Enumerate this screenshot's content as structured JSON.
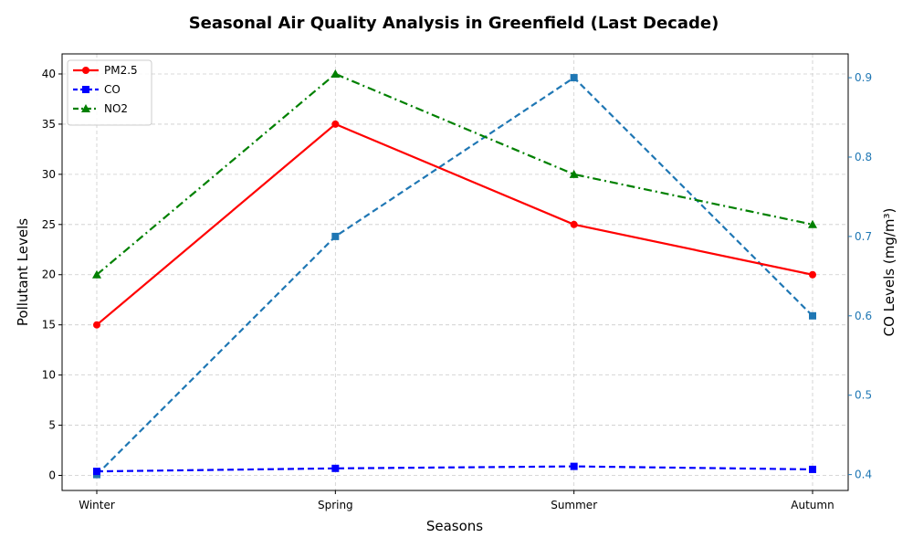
{
  "chart_data": {
    "type": "line",
    "title": "Seasonal Air Quality Analysis in Greenfield (Last Decade)",
    "xlabel": "Seasons",
    "ylabel": "Pollutant Levels",
    "ylabel_right": "CO Levels (mg/m³)",
    "categories": [
      "Winter",
      "Spring",
      "Summer",
      "Autumn"
    ],
    "ylim": [
      -1.5,
      42
    ],
    "yticks": [
      0,
      5,
      10,
      15,
      20,
      25,
      30,
      35,
      40
    ],
    "ylim_right": [
      0.38,
      0.93
    ],
    "yticks_right": [
      0.4,
      0.5,
      0.6,
      0.7,
      0.8,
      0.9
    ],
    "grid": true,
    "legend_position": "top-left",
    "series": [
      {
        "name": "PM2.5",
        "values": [
          15,
          35,
          25,
          20
        ],
        "color": "#ff0000",
        "style": "solid",
        "marker": "circle",
        "axis": "left",
        "in_legend": true
      },
      {
        "name": "CO",
        "values": [
          0.4,
          0.7,
          0.9,
          0.6
        ],
        "color": "#0000ff",
        "style": "dashed",
        "marker": "square",
        "axis": "left",
        "in_legend": true
      },
      {
        "name": "NO2",
        "values": [
          20,
          40,
          30,
          25
        ],
        "color": "#008000",
        "style": "dashdot",
        "marker": "triangle",
        "axis": "left",
        "in_legend": true
      },
      {
        "name": "",
        "values": [
          0.4,
          0.7,
          0.9,
          0.6
        ],
        "color": "#1f77b4",
        "style": "dashed",
        "marker": "square",
        "axis": "right",
        "in_legend": false
      }
    ],
    "right_axis_color": "#1f77b4"
  }
}
